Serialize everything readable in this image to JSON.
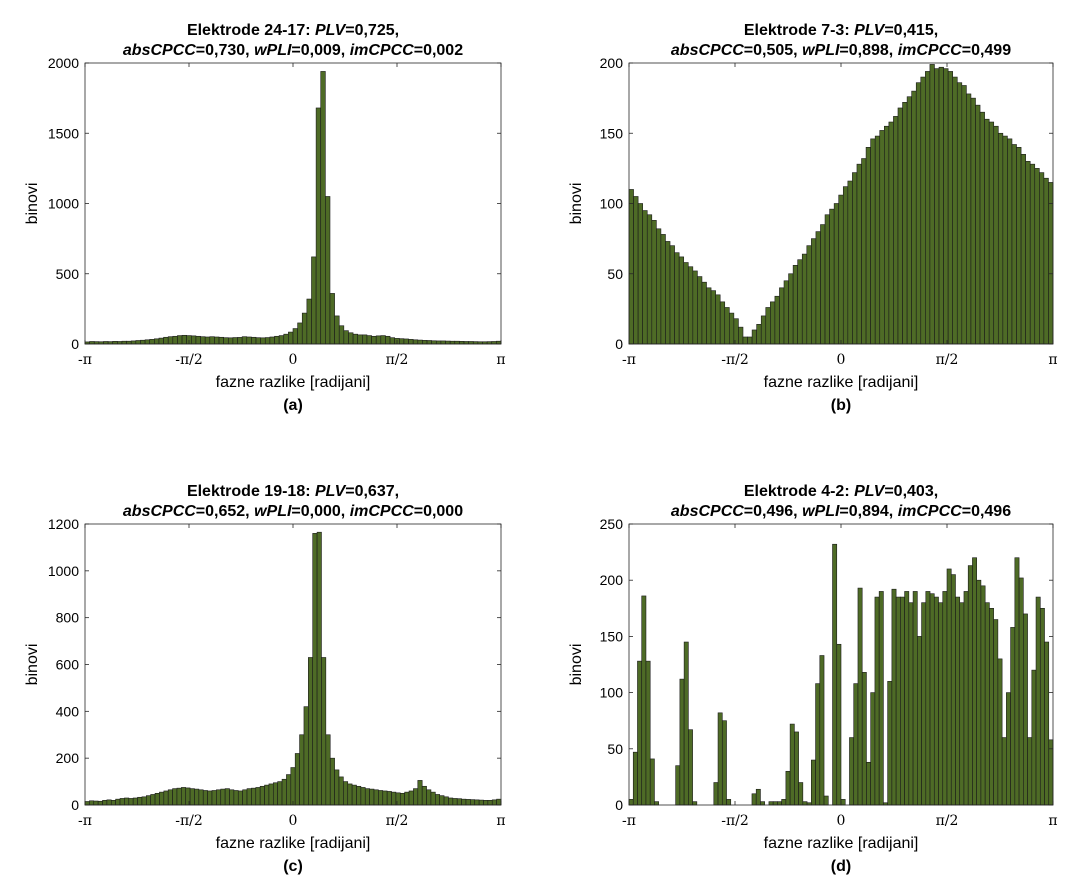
{
  "figure": {
    "bar_color": "#4e6b26",
    "bar_edge": "#1a1a1a",
    "xticks": [
      "-π",
      "-π/2",
      "0",
      "π/2",
      "π"
    ],
    "xlabel": "fazne razlike [radijani]",
    "ylabel": "binovi"
  },
  "chart_data": [
    {
      "type": "bar",
      "panel": "(a)",
      "title": {
        "line1": [
          {
            "t": "Elektrode 24-17:  ",
            "i": false
          },
          {
            "t": "PLV",
            "i": true
          },
          {
            "t": "=0,725,",
            "i": false
          }
        ],
        "line2": [
          {
            "t": "absCPCC",
            "i": true
          },
          {
            "t": "=0,730,  ",
            "i": false
          },
          {
            "t": "wPLI",
            "i": true
          },
          {
            "t": "=0,009,  ",
            "i": false
          },
          {
            "t": "imCPCC",
            "i": true
          },
          {
            "t": "=0,002",
            "i": false
          }
        ]
      },
      "xlabel": "fazne razlike [radijani]",
      "ylabel": "binovi",
      "xlim": [
        -3.1416,
        3.1416
      ],
      "ylim": [
        0,
        2000
      ],
      "yticks": [
        0,
        500,
        1000,
        1500,
        2000
      ],
      "values": [
        15,
        18,
        17,
        16,
        18,
        17,
        19,
        18,
        20,
        20,
        22,
        25,
        27,
        30,
        33,
        37,
        42,
        48,
        52,
        55,
        60,
        62,
        60,
        58,
        55,
        52,
        50,
        52,
        50,
        48,
        45,
        44,
        46,
        47,
        52,
        50,
        48,
        45,
        44,
        46,
        50,
        55,
        60,
        70,
        85,
        110,
        150,
        220,
        320,
        620,
        1680,
        1940,
        1050,
        360,
        200,
        130,
        95,
        80,
        70,
        65,
        65,
        60,
        55,
        58,
        60,
        55,
        45,
        40,
        38,
        36,
        33,
        30,
        28,
        26,
        25,
        23,
        22,
        22,
        21,
        20,
        20,
        19,
        18,
        18,
        17,
        16,
        16,
        17,
        18,
        20
      ]
    },
    {
      "type": "bar",
      "panel": "(b)",
      "title": {
        "line1": [
          {
            "t": "Elektrode 7-3:  ",
            "i": false
          },
          {
            "t": "PLV",
            "i": true
          },
          {
            "t": "=0,415,",
            "i": false
          }
        ],
        "line2": [
          {
            "t": "absCPCC",
            "i": true
          },
          {
            "t": "=0,505,  ",
            "i": false
          },
          {
            "t": "wPLI",
            "i": true
          },
          {
            "t": "=0,898,  ",
            "i": false
          },
          {
            "t": "imCPCC",
            "i": true
          },
          {
            "t": "=0,499",
            "i": false
          }
        ]
      },
      "xlabel": "fazne razlike [radijani]",
      "ylabel": "binovi",
      "xlim": [
        -3.1416,
        3.1416
      ],
      "ylim": [
        0,
        200
      ],
      "yticks": [
        0,
        50,
        100,
        150,
        200
      ],
      "values": [
        110,
        105,
        100,
        95,
        92,
        88,
        82,
        78,
        73,
        70,
        65,
        62,
        58,
        55,
        52,
        48,
        44,
        40,
        38,
        35,
        30,
        26,
        22,
        18,
        12,
        5,
        5,
        10,
        14,
        20,
        26,
        30,
        34,
        40,
        45,
        50,
        56,
        60,
        64,
        70,
        75,
        80,
        85,
        92,
        96,
        100,
        106,
        112,
        116,
        122,
        128,
        132,
        140,
        146,
        148,
        152,
        155,
        158,
        162,
        168,
        172,
        176,
        180,
        186,
        190,
        194,
        199,
        196,
        197,
        196,
        194,
        190,
        186,
        184,
        178,
        175,
        170,
        165,
        160,
        158,
        155,
        150,
        148,
        146,
        142,
        140,
        135,
        130,
        128,
        125,
        122,
        118,
        115
      ]
    },
    {
      "type": "bar",
      "panel": "(c)",
      "title": {
        "line1": [
          {
            "t": "Elektrode 19-18:  ",
            "i": false
          },
          {
            "t": "PLV",
            "i": true
          },
          {
            "t": "=0,637,",
            "i": false
          }
        ],
        "line2": [
          {
            "t": "absCPCC",
            "i": true
          },
          {
            "t": "=0,652,  ",
            "i": false
          },
          {
            "t": "wPLI",
            "i": true
          },
          {
            "t": "=0,000,  ",
            "i": false
          },
          {
            "t": "imCPCC",
            "i": true
          },
          {
            "t": "=0,000",
            "i": false
          }
        ]
      },
      "xlabel": "fazne razlike [radijani]",
      "ylabel": "binovi",
      "xlim": [
        -3.1416,
        3.1416
      ],
      "ylim": [
        0,
        1200
      ],
      "yticks": [
        0,
        200,
        400,
        600,
        800,
        1000,
        1200
      ],
      "values": [
        15,
        18,
        17,
        16,
        20,
        22,
        20,
        25,
        28,
        30,
        28,
        30,
        33,
        35,
        40,
        45,
        50,
        55,
        60,
        65,
        70,
        72,
        75,
        73,
        70,
        68,
        65,
        62,
        60,
        62,
        65,
        68,
        70,
        65,
        62,
        60,
        65,
        70,
        72,
        75,
        80,
        85,
        90,
        95,
        100,
        110,
        130,
        160,
        220,
        300,
        420,
        630,
        1160,
        1165,
        630,
        300,
        200,
        150,
        120,
        100,
        90,
        85,
        80,
        75,
        70,
        68,
        65,
        62,
        60,
        58,
        55,
        52,
        50,
        55,
        60,
        70,
        105,
        80,
        65,
        55,
        45,
        40,
        35,
        30,
        28,
        27,
        25,
        24,
        23,
        22,
        21,
        20,
        20,
        22,
        25
      ]
    },
    {
      "type": "bar",
      "panel": "(d)",
      "title": {
        "line1": [
          {
            "t": "Elektrode 4-2:  ",
            "i": false
          },
          {
            "t": "PLV",
            "i": true
          },
          {
            "t": "=0,403,",
            "i": false
          }
        ],
        "line2": [
          {
            "t": "absCPCC",
            "i": true
          },
          {
            "t": "=0,496,  ",
            "i": false
          },
          {
            "t": "wPLI",
            "i": true
          },
          {
            "t": "=0,894,  ",
            "i": false
          },
          {
            "t": "imCPCC",
            "i": true
          },
          {
            "t": "=0,496",
            "i": false
          }
        ]
      },
      "xlabel": "fazne razlike [radijani]",
      "ylabel": "binovi",
      "xlim": [
        -3.1416,
        3.1416
      ],
      "ylim": [
        0,
        250
      ],
      "yticks": [
        0,
        50,
        100,
        150,
        200,
        250
      ],
      "values": [
        5,
        47,
        128,
        186,
        128,
        41,
        3,
        0,
        0,
        0,
        0,
        35,
        112,
        145,
        67,
        3,
        0,
        0,
        0,
        0,
        20,
        82,
        75,
        5,
        0,
        0,
        0,
        0,
        0,
        10,
        14,
        3,
        0,
        3,
        3,
        3,
        5,
        30,
        72,
        65,
        20,
        3,
        2,
        40,
        108,
        133,
        8,
        0,
        232,
        143,
        5,
        0,
        60,
        108,
        193,
        118,
        38,
        100,
        185,
        190,
        2,
        110,
        192,
        185,
        185,
        190,
        180,
        190,
        150,
        180,
        190,
        188,
        185,
        180,
        190,
        210,
        205,
        185,
        180,
        190,
        213,
        220,
        200,
        195,
        180,
        175,
        165,
        130,
        60,
        100,
        158,
        220,
        202,
        170,
        60,
        120,
        185,
        175,
        145,
        58
      ]
    }
  ]
}
